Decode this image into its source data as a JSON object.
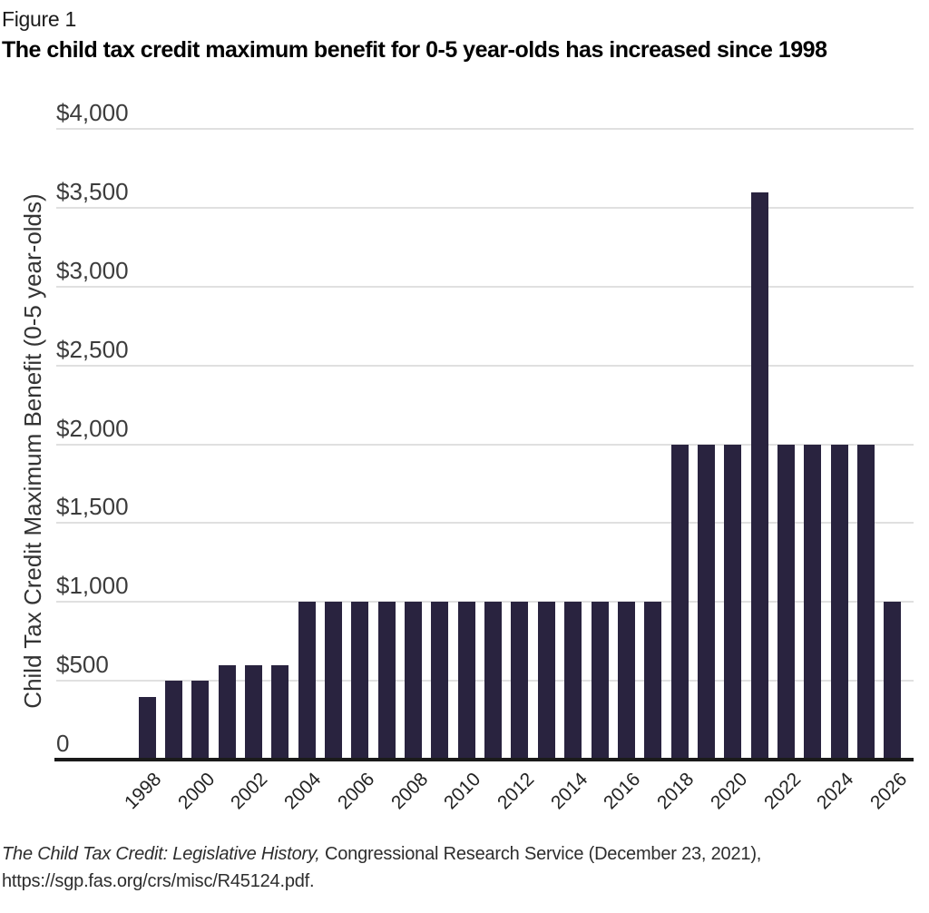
{
  "figure_label": "Figure 1",
  "title": "The child tax credit maximum benefit for 0-5 year-olds has increased since 1998",
  "source": {
    "work_title_italic": "The Child Tax Credit: Legislative History,",
    "rest_of_line1": " Congressional Research Service (December 23, 2021),",
    "line2": "https://sgp.fas.org/crs/misc/R45124.pdf."
  },
  "chart_data": {
    "type": "bar",
    "title": "The child tax credit maximum benefit for 0-5 year-olds has increased since 1998",
    "xlabel": "",
    "ylabel": "Child Tax Credit Maximum Benefit (0-5 year-olds)",
    "ylim": [
      0,
      4000
    ],
    "grid": true,
    "legend": false,
    "bar_color": "#29233f",
    "gridline_color": "#e0e0e0",
    "axis_color": "#1a1a1a",
    "categories": [
      1998,
      1999,
      2000,
      2001,
      2002,
      2003,
      2004,
      2005,
      2006,
      2007,
      2008,
      2009,
      2010,
      2011,
      2012,
      2013,
      2014,
      2015,
      2016,
      2017,
      2018,
      2019,
      2020,
      2021,
      2022,
      2023,
      2024,
      2025,
      2026
    ],
    "values": [
      400,
      500,
      500,
      600,
      600,
      600,
      1000,
      1000,
      1000,
      1000,
      1000,
      1000,
      1000,
      1000,
      1000,
      1000,
      1000,
      1000,
      1000,
      1000,
      2000,
      2000,
      2000,
      3600,
      2000,
      2000,
      2000,
      2000,
      1000
    ],
    "yticks": [
      {
        "value": 0,
        "label": "0"
      },
      {
        "value": 500,
        "label": "$500"
      },
      {
        "value": 1000,
        "label": "$1,000"
      },
      {
        "value": 1500,
        "label": "$1,500"
      },
      {
        "value": 2000,
        "label": "$2,000"
      },
      {
        "value": 2500,
        "label": "$2,500"
      },
      {
        "value": 3000,
        "label": "$3,000"
      },
      {
        "value": 3500,
        "label": "$3,500"
      },
      {
        "value": 4000,
        "label": "$4,000"
      }
    ],
    "xtick_labels": [
      "1998",
      "2000",
      "2002",
      "2004",
      "2006",
      "2008",
      "2010",
      "2012",
      "2014",
      "2016",
      "2018",
      "2020",
      "2022",
      "2024",
      "2026"
    ]
  }
}
